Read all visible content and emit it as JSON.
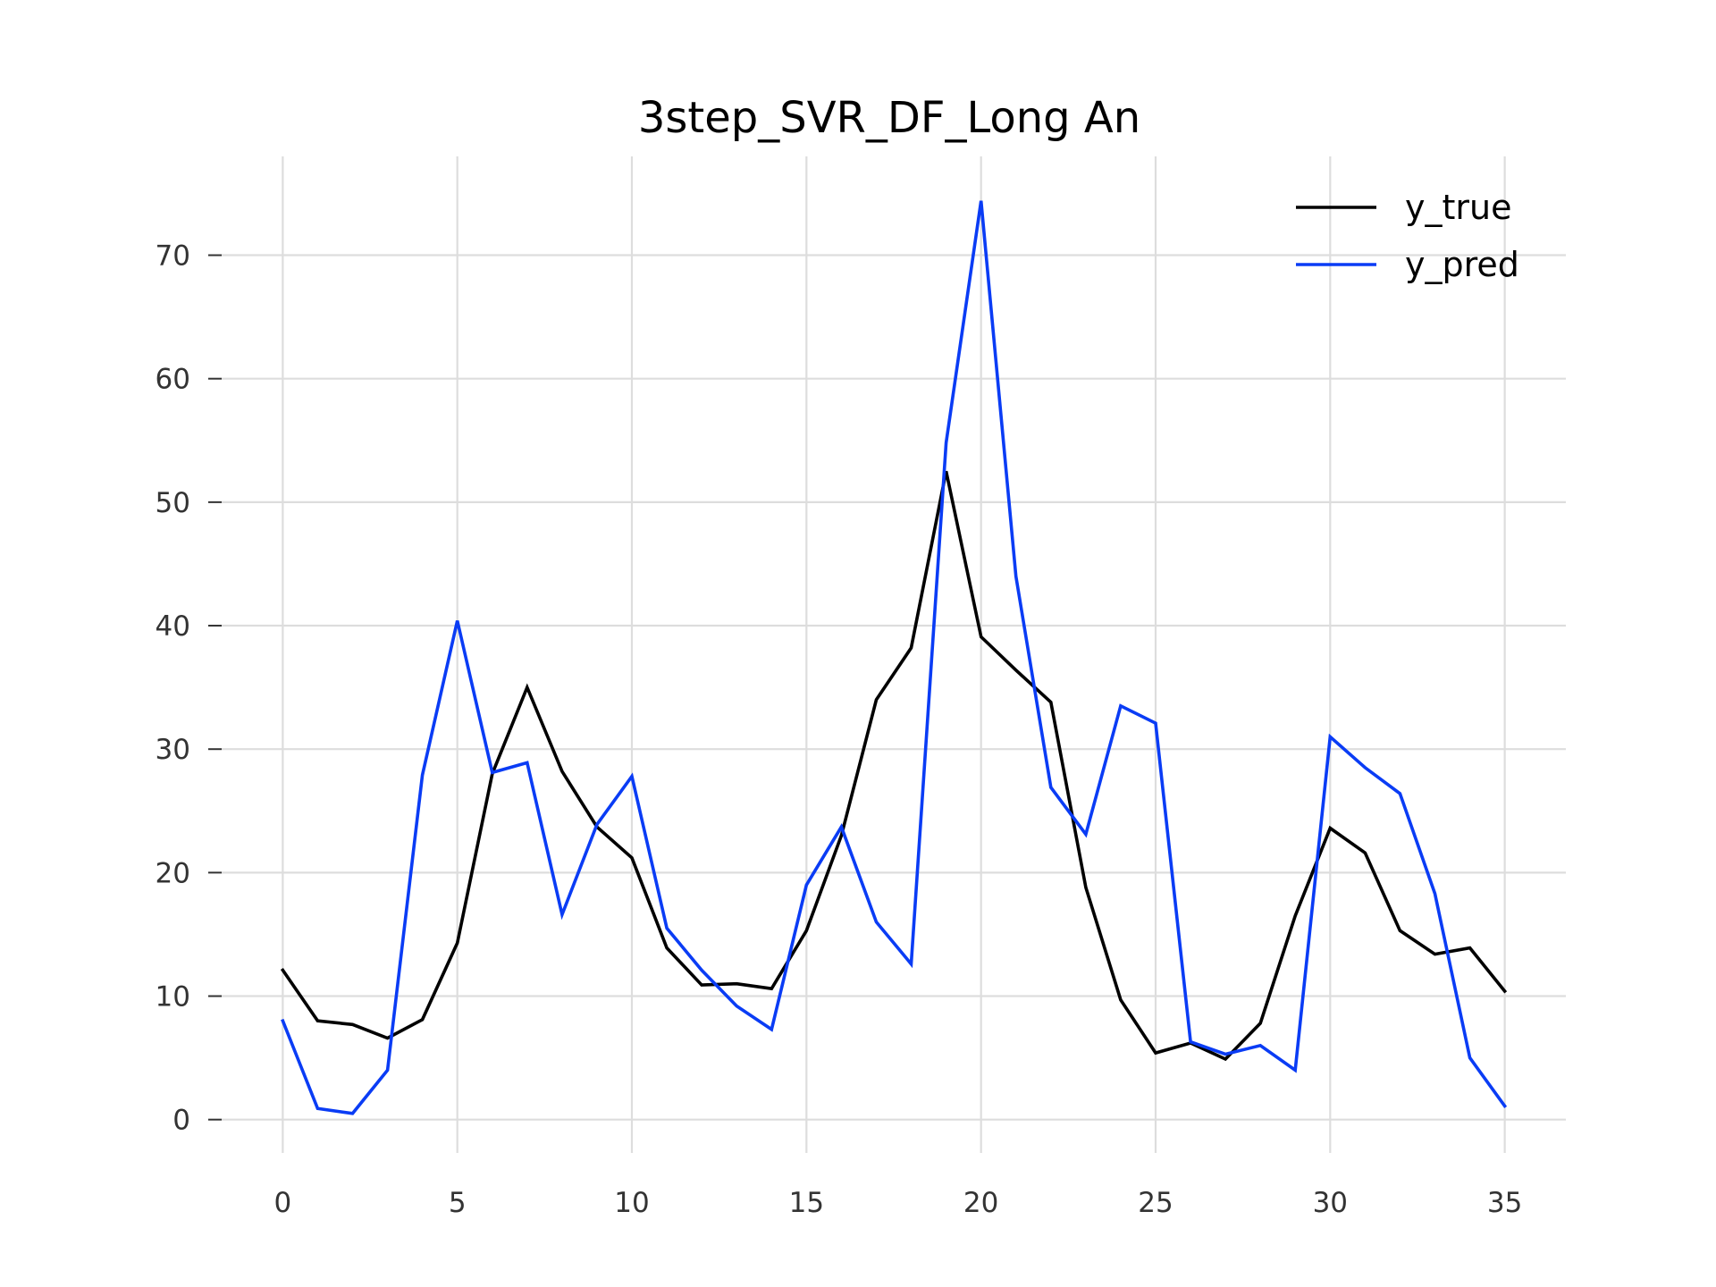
{
  "chart_data": {
    "type": "line",
    "title": "3step_SVR_DF_Long An",
    "xlabel": "",
    "ylabel": "",
    "xlim": [
      -1.75,
      36.75
    ],
    "ylim": [
      -2.7,
      78
    ],
    "x_ticks": [
      0,
      5,
      10,
      15,
      20,
      25,
      30,
      35
    ],
    "y_ticks": [
      0,
      10,
      20,
      30,
      40,
      50,
      60,
      70
    ],
    "grid": true,
    "legend_position": "top-right",
    "x": [
      0,
      1,
      2,
      3,
      4,
      5,
      6,
      7,
      8,
      9,
      10,
      11,
      12,
      13,
      14,
      15,
      16,
      17,
      18,
      19,
      20,
      21,
      22,
      23,
      24,
      25,
      26,
      27,
      28,
      29,
      30,
      31,
      32,
      33,
      34,
      35
    ],
    "series": [
      {
        "name": "y_true",
        "color": "#000000",
        "values": [
          12.1,
          8.0,
          7.7,
          6.6,
          8.1,
          14.3,
          28.0,
          35.0,
          28.2,
          23.7,
          21.2,
          13.9,
          10.9,
          11.0,
          10.6,
          15.3,
          23.0,
          34.0,
          38.2,
          52.5,
          39.1,
          36.4,
          33.8,
          18.8,
          9.7,
          5.4,
          6.2,
          4.9,
          7.8,
          16.5,
          23.6,
          21.6,
          15.3,
          13.4,
          13.9,
          10.4
        ]
      },
      {
        "name": "y_pred",
        "color": "#0a3cf5",
        "values": [
          8.0,
          0.9,
          0.5,
          4.0,
          27.9,
          40.4,
          28.1,
          28.9,
          16.6,
          23.9,
          27.8,
          15.5,
          12.1,
          9.2,
          7.3,
          19.0,
          23.7,
          16.0,
          12.6,
          54.8,
          74.4,
          44.0,
          26.9,
          23.1,
          33.5,
          32.1,
          6.3,
          5.3,
          6.0,
          4.0,
          31.0,
          28.5,
          26.4,
          18.3,
          5.0,
          1.1
        ]
      }
    ]
  }
}
